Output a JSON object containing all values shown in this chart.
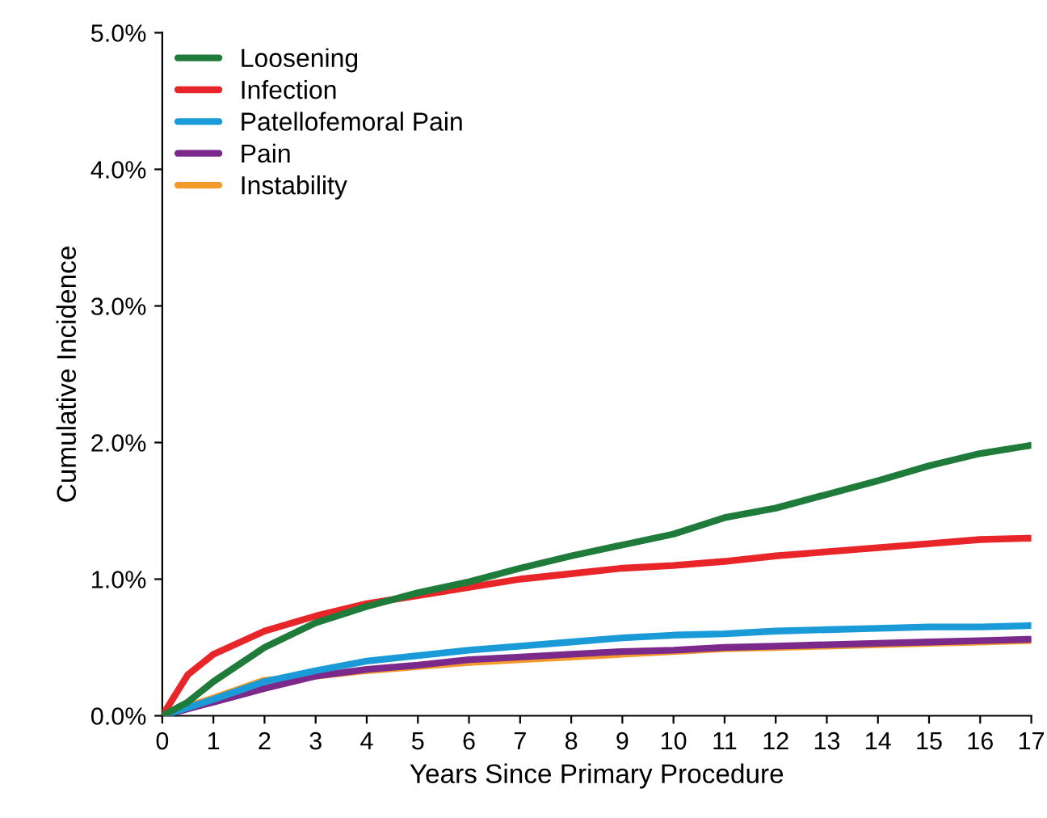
{
  "chart_data": {
    "type": "line",
    "xlabel": "Years Since Primary Procedure",
    "ylabel": "Cumulative Incidence",
    "x": [
      0,
      0.5,
      1,
      2,
      3,
      4,
      5,
      6,
      7,
      8,
      9,
      10,
      11,
      12,
      13,
      14,
      15,
      16,
      17
    ],
    "xlim": [
      0,
      17
    ],
    "xticks": [
      0,
      1,
      2,
      3,
      4,
      5,
      6,
      7,
      8,
      9,
      10,
      11,
      12,
      13,
      14,
      15,
      16,
      17
    ],
    "ylim": [
      0,
      5
    ],
    "yticks": [
      {
        "value": 0,
        "label": "0.0%"
      },
      {
        "value": 1,
        "label": "1.0%"
      },
      {
        "value": 2,
        "label": "2.0%"
      },
      {
        "value": 3,
        "label": "3.0%"
      },
      {
        "value": 4,
        "label": "4.0%"
      },
      {
        "value": 5,
        "label": "5.0%"
      }
    ],
    "grid": false,
    "legend": "top left",
    "marker": "none",
    "line_style": "solid",
    "series": [
      {
        "name": "Loosening",
        "color": "#1e7b3a",
        "values": [
          0,
          0.1,
          0.25,
          0.5,
          0.68,
          0.8,
          0.9,
          0.98,
          1.08,
          1.17,
          1.25,
          1.33,
          1.45,
          1.52,
          1.62,
          1.72,
          1.83,
          1.92,
          1.98
        ]
      },
      {
        "name": "Infection",
        "color": "#e8262a",
        "values": [
          0,
          0.3,
          0.45,
          0.62,
          0.73,
          0.82,
          0.88,
          0.94,
          1.0,
          1.04,
          1.08,
          1.1,
          1.13,
          1.17,
          1.2,
          1.23,
          1.26,
          1.29,
          1.3
        ]
      },
      {
        "name": "Patellofemoral Pain",
        "color": "#1a9ad6",
        "values": [
          0,
          0.06,
          0.12,
          0.25,
          0.33,
          0.4,
          0.44,
          0.48,
          0.51,
          0.54,
          0.57,
          0.59,
          0.6,
          0.62,
          0.63,
          0.64,
          0.65,
          0.65,
          0.66
        ]
      },
      {
        "name": "Pain",
        "color": "#7b2a8c",
        "values": [
          0,
          0.05,
          0.1,
          0.2,
          0.29,
          0.34,
          0.37,
          0.41,
          0.43,
          0.45,
          0.47,
          0.48,
          0.5,
          0.51,
          0.52,
          0.53,
          0.54,
          0.55,
          0.56
        ]
      },
      {
        "name": "Instability",
        "color": "#f39a2b",
        "values": [
          0,
          0.07,
          0.13,
          0.26,
          0.29,
          0.33,
          0.36,
          0.39,
          0.41,
          0.43,
          0.45,
          0.47,
          0.49,
          0.5,
          0.51,
          0.52,
          0.53,
          0.54,
          0.55
        ]
      }
    ]
  }
}
